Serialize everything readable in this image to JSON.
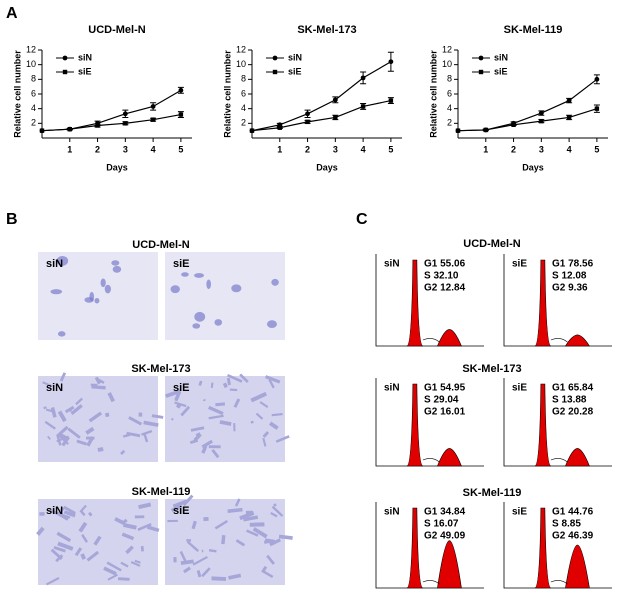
{
  "panel_labels": [
    "A",
    "B",
    "C"
  ],
  "chart_data": [
    {
      "type": "line",
      "title": "UCD-Mel-N",
      "x_label": "Days",
      "y_label": "Relative cell number",
      "x": [
        0,
        1,
        2,
        3,
        4,
        5
      ],
      "xlim": [
        0,
        5.4
      ],
      "xticks": [
        1,
        2,
        3,
        4,
        5
      ],
      "ylim": [
        0,
        12
      ],
      "yticks": [
        2,
        4,
        6,
        8,
        10,
        12
      ],
      "legend": "upper left",
      "series": [
        {
          "name": "siN",
          "color": "#000000",
          "marker": "circle",
          "values": [
            1,
            1.2,
            2.0,
            3.3,
            4.3,
            6.5
          ],
          "errors": [
            0,
            0.1,
            0.3,
            0.5,
            0.5,
            0.4
          ]
        },
        {
          "name": "siE",
          "color": "#000000",
          "marker": "square",
          "values": [
            1,
            1.2,
            1.7,
            2.0,
            2.5,
            3.2
          ],
          "errors": [
            0,
            0.1,
            0.2,
            0.2,
            0.2,
            0.4
          ]
        }
      ]
    },
    {
      "type": "line",
      "title": "SK-Mel-173",
      "x_label": "Days",
      "y_label": "Relative cell number",
      "x": [
        0,
        1,
        2,
        3,
        4,
        5
      ],
      "xlim": [
        0,
        5.4
      ],
      "xticks": [
        1,
        2,
        3,
        4,
        5
      ],
      "ylim": [
        0,
        12
      ],
      "yticks": [
        2,
        4,
        6,
        8,
        10,
        12
      ],
      "legend": "upper left",
      "series": [
        {
          "name": "siN",
          "color": "#000000",
          "marker": "circle",
          "values": [
            1,
            1.8,
            3.3,
            5.2,
            8.2,
            10.4
          ],
          "errors": [
            0,
            0.2,
            0.5,
            0.4,
            0.8,
            1.3
          ]
        },
        {
          "name": "siE",
          "color": "#000000",
          "marker": "square",
          "values": [
            1,
            1.4,
            2.2,
            2.8,
            4.3,
            5.1
          ],
          "errors": [
            0,
            0.1,
            0.2,
            0.3,
            0.4,
            0.4
          ]
        }
      ]
    },
    {
      "type": "line",
      "title": "SK-Mel-119",
      "x_label": "Days",
      "y_label": "Relative cell number",
      "x": [
        0,
        1,
        2,
        3,
        4,
        5
      ],
      "xlim": [
        0,
        5.4
      ],
      "xticks": [
        1,
        2,
        3,
        4,
        5
      ],
      "ylim": [
        0,
        12
      ],
      "yticks": [
        2,
        4,
        6,
        8,
        10,
        12
      ],
      "legend": "upper left",
      "series": [
        {
          "name": "siN",
          "color": "#000000",
          "marker": "circle",
          "values": [
            1,
            1.1,
            2.0,
            3.4,
            5.1,
            8.0
          ],
          "errors": [
            0,
            0.1,
            0.2,
            0.3,
            0.3,
            0.6
          ]
        },
        {
          "name": "siE",
          "color": "#000000",
          "marker": "square",
          "values": [
            1,
            1.1,
            1.8,
            2.3,
            2.8,
            4.0
          ],
          "errors": [
            0,
            0.1,
            0.1,
            0.2,
            0.3,
            0.5
          ]
        }
      ]
    }
  ],
  "microscopy": {
    "panels": [
      {
        "title": "UCD-Mel-N",
        "labels": [
          "siN",
          "siE"
        ]
      },
      {
        "title": "SK-Mel-173",
        "labels": [
          "siN",
          "siE"
        ]
      },
      {
        "title": "SK-Mel-119",
        "labels": [
          "siN",
          "siE"
        ]
      }
    ]
  },
  "cell_cycle": {
    "panels": [
      {
        "title": "UCD-Mel-N",
        "samples": [
          {
            "label": "siN",
            "stats": [
              "G1 55.06",
              "S 32.10",
              "G2 12.84"
            ]
          },
          {
            "label": "siE",
            "stats": [
              "G1 78.56",
              "S 12.08",
              "G2 9.36"
            ]
          }
        ]
      },
      {
        "title": "SK-Mel-173",
        "samples": [
          {
            "label": "siN",
            "stats": [
              "G1 54.95",
              "S 29.04",
              "G2 16.01"
            ]
          },
          {
            "label": "siE",
            "stats": [
              "G1 65.84",
              "S 13.88",
              "G2 20.28"
            ]
          }
        ]
      },
      {
        "title": "SK-Mel-119",
        "samples": [
          {
            "label": "siN",
            "stats": [
              "G1 34.84",
              "S 16.07",
              "G2 49.09"
            ]
          },
          {
            "label": "siE",
            "stats": [
              "G1 44.76",
              "S 8.85",
              "G2 46.39"
            ]
          }
        ]
      }
    ]
  }
}
